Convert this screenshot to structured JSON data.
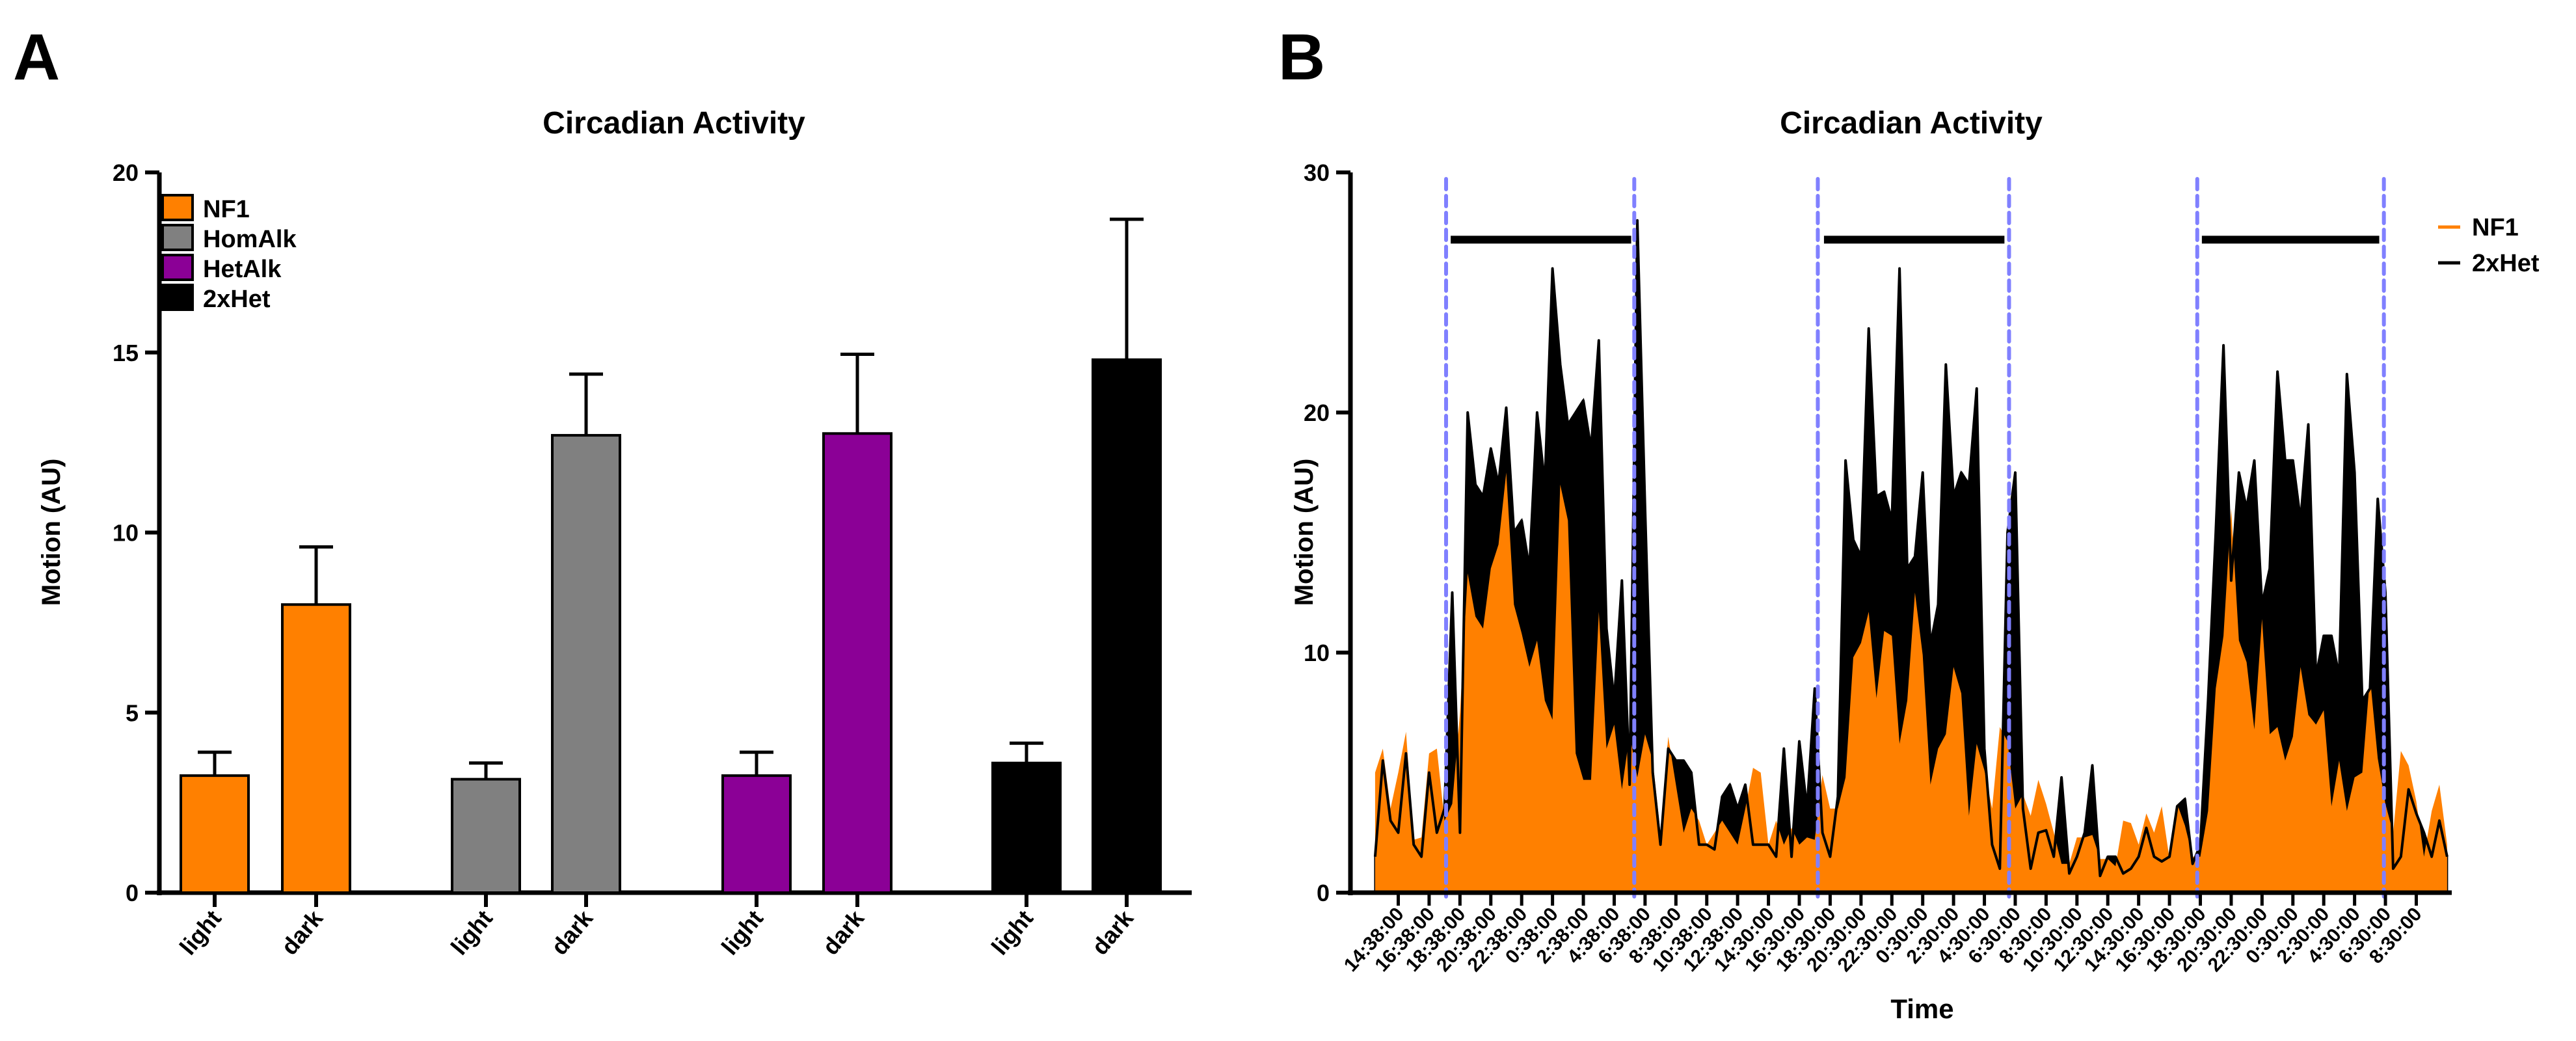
{
  "colors": {
    "NF1": "#FF8000",
    "HomAlk": "#808080",
    "HetAlk": "#8B0096",
    "2xHet": "#000000",
    "dark_period_line": "#8080FF"
  },
  "chart_data": [
    {
      "panel_label": "A",
      "type": "bar",
      "title": "Circadian Activity",
      "xlabel": "",
      "ylabel": "Motion (AU)",
      "ylim": [
        0,
        20
      ],
      "yticks": [
        "0",
        "5",
        "10",
        "15",
        "20"
      ],
      "legend": {
        "position": "top-left",
        "entries": [
          "NF1",
          "HomAlk",
          "HetAlk",
          "2xHet"
        ]
      },
      "categories": [
        "light",
        "dark"
      ],
      "series": [
        {
          "name": "NF1",
          "values": [
            3.25,
            8.0
          ],
          "errors": [
            0.65,
            1.6
          ]
        },
        {
          "name": "HomAlk",
          "values": [
            3.15,
            12.7
          ],
          "errors": [
            0.45,
            1.7
          ]
        },
        {
          "name": "HetAlk",
          "values": [
            3.25,
            12.75
          ],
          "errors": [
            0.65,
            2.2
          ]
        },
        {
          "name": "2xHet",
          "values": [
            3.6,
            14.8
          ],
          "errors": [
            0.55,
            3.9
          ]
        }
      ]
    },
    {
      "panel_label": "B",
      "type": "area",
      "title": "Circadian Activity",
      "xlabel": "Time",
      "ylabel": "Motion (AU)",
      "ylim": [
        0,
        30
      ],
      "xlim_hours": [
        0,
        71.4
      ],
      "yticks": [
        "0",
        "10",
        "20",
        "30"
      ],
      "xtick_first_hour": 3.1,
      "xtick_step_hours": 2,
      "xticks": [
        "14:38:00",
        "16:38:00",
        "18:38:00",
        "20:38:00",
        "22:38:00",
        "0:38:00",
        "2:38:00",
        "4:38:00",
        "6:38:00",
        "8:38:00",
        "10:38:00",
        "12:38:00",
        "14:30:00",
        "16:30:00",
        "18:30:00",
        "20:30:00",
        "22:30:00",
        "0:30:00",
        "2:30:00",
        "4:30:00",
        "6:30:00",
        "8:30:00",
        "10:30:00",
        "12:30:00",
        "14:30:00",
        "16:30:00",
        "18:30:00",
        "20:30:00",
        "22:30:00",
        "0:30:00",
        "2:30:00",
        "4:30:00",
        "6:30:00",
        "8:30:00"
      ],
      "legend": {
        "position": "top-right",
        "entries": [
          "NF1",
          "2xHet"
        ]
      },
      "x_start_hour": 1.6,
      "x_step_hours": 0.5,
      "dark_period_boundaries_hours": [
        6.2,
        18.4,
        30.3,
        42.7,
        54.9,
        67.0
      ],
      "dark_bars": {
        "y": 27.2,
        "spans_hours": [
          [
            6.5,
            18.2
          ],
          [
            30.7,
            42.4
          ],
          [
            55.2,
            66.7
          ]
        ]
      },
      "series": [
        {
          "name": "2xHet",
          "values": [
            1.5,
            5.5,
            3,
            2.5,
            5.8,
            2,
            1.5,
            5,
            2.5,
            3.5,
            12.5,
            2.5,
            20,
            17,
            16.5,
            18.5,
            17,
            20.2,
            15,
            15.5,
            13.5,
            20,
            17,
            26,
            22,
            19.5,
            20,
            20.5,
            18.5,
            23,
            11,
            8,
            13,
            4.5,
            28,
            16,
            5,
            2,
            6,
            5.5,
            5.5,
            5,
            2,
            2,
            1.8,
            4,
            4.5,
            3.5,
            4.5,
            2,
            2,
            2,
            1.5,
            6,
            1.5,
            6.3,
            3.5,
            8.5,
            2.5,
            1.5,
            4,
            18,
            14.7,
            14,
            23.5,
            16.5,
            16.7,
            15.5,
            26,
            13.5,
            14,
            17.5,
            10.3,
            12,
            22,
            16.5,
            17.5,
            17,
            21,
            6,
            2,
            1,
            15,
            17.5,
            3.5,
            1,
            2.5,
            2.6,
            1.5,
            4.8,
            0.8,
            1.5,
            2.5,
            5.3,
            0.7,
            1.5,
            1.5,
            0.8,
            1,
            1.5,
            2.7,
            1.5,
            1.3,
            1.5,
            3.6,
            3.9,
            1.2,
            2,
            8,
            15,
            22.8,
            13,
            17.5,
            16,
            18,
            12,
            13.5,
            21.7,
            18,
            18,
            15.5,
            19.5,
            9,
            10.7,
            10.7,
            9,
            21.6,
            17.5,
            8,
            8.5,
            16.4,
            12.5,
            1,
            1.5,
            4.3,
            3.3,
            2.5,
            1.5,
            3,
            1.5
          ]
        },
        {
          "name": "NF1",
          "values": [
            5,
            6,
            3.5,
            5,
            6.7,
            2.2,
            2.3,
            5.8,
            6,
            3,
            3.7,
            7.5,
            13.3,
            11.5,
            11,
            13.5,
            14.5,
            17.5,
            12,
            10.8,
            9.4,
            10.5,
            8,
            7.2,
            17,
            15.5,
            5.8,
            4.7,
            4.7,
            11.7,
            6,
            7,
            4.3,
            6.6,
            4.8,
            6.6,
            5.5,
            2.5,
            6.5,
            4.5,
            2.5,
            3.5,
            3,
            2,
            2.5,
            3,
            2.5,
            2,
            3.5,
            5.2,
            5,
            2,
            3,
            2,
            2.7,
            2,
            2.3,
            2.2,
            4.9,
            3.5,
            3.5,
            4.8,
            9.8,
            10.4,
            11.7,
            8.1,
            10.9,
            10.7,
            6.2,
            8,
            12.5,
            9.9,
            4.5,
            6,
            6.6,
            9.4,
            8.3,
            3.2,
            6.2,
            5.1,
            3.5,
            6.9,
            6.3,
            3.5,
            4.1,
            3.2,
            4.7,
            3.7,
            2.5,
            1.2,
            1.2,
            2.3,
            2.3,
            2.4,
            1.4,
            1.4,
            1.1,
            3,
            2.9,
            2,
            3.3,
            2.5,
            3.6,
            1.4,
            3.7,
            2.8,
            1.5,
            1.5,
            3.4,
            8.5,
            10.7,
            16,
            10.5,
            9.6,
            6.8,
            11.4,
            6.6,
            6.9,
            5.5,
            6.5,
            9.4,
            7.4,
            7,
            7.6,
            3.6,
            5.5,
            3.4,
            4.8,
            5,
            9,
            5.6,
            3.7,
            2.5,
            5.9,
            5.3,
            3.8,
            1.5,
            3.4,
            4.5,
            2
          ]
        }
      ]
    }
  ]
}
